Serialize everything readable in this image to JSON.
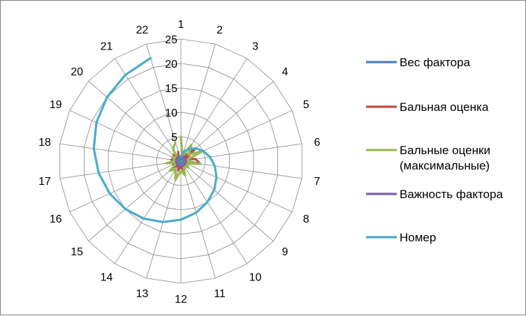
{
  "chart_data": {
    "type": "radar",
    "categories": [
      "1",
      "2",
      "3",
      "4",
      "5",
      "6",
      "7",
      "8",
      "9",
      "10",
      "11",
      "12",
      "13",
      "14",
      "15",
      "16",
      "17",
      "18",
      "19",
      "20",
      "21",
      "22"
    ],
    "rlim": [
      0,
      25
    ],
    "r_ticks": [
      "0",
      "5",
      "10",
      "15",
      "20",
      "25"
    ],
    "grid": true,
    "legend": "right",
    "series": [
      {
        "name": "Вес фактора",
        "color": "#4a7ebb",
        "values": [
          0.5,
          0.5,
          0.5,
          0.5,
          0.5,
          0.5,
          0.5,
          0.5,
          0.5,
          0.5,
          0.5,
          0.5,
          0.5,
          0.5,
          0.5,
          0.5,
          0.5,
          0.5,
          0.5,
          0.5,
          0.5,
          0.5
        ]
      },
      {
        "name": "Бальная оценка",
        "color": "#be4b48",
        "values": [
          1,
          2,
          1,
          4,
          1,
          3,
          4,
          1,
          2,
          1,
          2,
          1,
          2,
          1,
          2,
          1,
          1,
          2,
          1,
          2,
          1,
          2
        ]
      },
      {
        "name": "Бальные оценки (максимальные)",
        "legend_lines": [
          "Бальные оценки",
          "(максимальные)"
        ],
        "color": "#98b954",
        "values": [
          5,
          1,
          4,
          2,
          5,
          1,
          4,
          1,
          2,
          1,
          3,
          2,
          4,
          2,
          3,
          1,
          3,
          1,
          2,
          1,
          3,
          4
        ]
      },
      {
        "name": "Важность фактора",
        "color": "#7d60a0",
        "values": [
          1,
          1,
          1,
          1,
          1,
          1,
          1,
          1,
          1,
          1,
          1,
          1,
          1,
          1,
          1,
          1,
          1,
          1,
          1,
          1,
          1,
          1
        ]
      },
      {
        "name": "Номер",
        "color": "#4bacc6",
        "values": [
          1,
          2,
          3,
          4,
          5,
          6,
          7,
          8,
          9,
          10,
          11,
          12,
          13,
          14,
          15,
          16,
          17,
          18,
          19,
          20,
          21,
          22
        ]
      }
    ]
  }
}
